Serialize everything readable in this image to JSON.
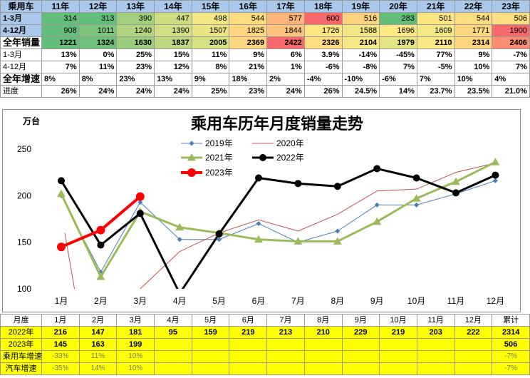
{
  "top_table": {
    "header": [
      "乘用车",
      "11年",
      "12年",
      "13年",
      "14年",
      "15年",
      "16年",
      "17年",
      "18年",
      "19年",
      "20年",
      "21年",
      "22年",
      "23年"
    ],
    "rows": [
      {
        "label": "1-3月",
        "values": [
          "314",
          "313",
          "390",
          "447",
          "498",
          "544",
          "577",
          "600",
          "516",
          "283",
          "501",
          "544",
          "506"
        ],
        "colors": [
          "#63be7b",
          "#63be7b",
          "#a2cf7e",
          "#cfdd81",
          "#f3e783",
          "#fedd81",
          "#fcb479",
          "#f8696b",
          "#fed27f",
          "#63be7b",
          "#fee683",
          "#fedd81",
          "#fedf81"
        ]
      },
      {
        "label": "4-12月",
        "values": [
          "908",
          "1011",
          "1240",
          "1390",
          "1507",
          "1825",
          "1844",
          "1726",
          "1588",
          "1696",
          "1609",
          "1771",
          "1900"
        ],
        "colors": [
          "#63be7b",
          "#7ec57c",
          "#b3d47f",
          "#d4df82",
          "#e9e583",
          "#fed680",
          "#fdc37c",
          "#fee683",
          "#f2e783",
          "#fee983",
          "#f3e983",
          "#fdd680",
          "#f8696b"
        ]
      },
      {
        "label": "全年销量",
        "values": [
          "1221",
          "1324",
          "1630",
          "1837",
          "2005",
          "2369",
          "2422",
          "2326",
          "2104",
          "1979",
          "2110",
          "2314",
          "2406"
        ],
        "colors": [
          "#63be7b",
          "#6dc17c",
          "#9ccd7e",
          "#bdd780",
          "#d7e082",
          "#fed680",
          "#f8696b",
          "#fedc81",
          "#f6e883",
          "#e5e482",
          "#f7e883",
          "#fed680",
          "#fa8c72"
        ]
      }
    ],
    "pct_rows": [
      {
        "label": "1-3月",
        "values": [
          "13%",
          "0%",
          "25%",
          "15%",
          "11%",
          "9%",
          "6%",
          "3.9%",
          "-14%",
          "-45%",
          "77%",
          "9%",
          "-7%"
        ]
      },
      {
        "label": "4-12月",
        "values": [
          "7%",
          "11%",
          "23%",
          "12%",
          "8%",
          "21%",
          "1%",
          "-6%",
          "-8%",
          "7%",
          "-5%",
          "10%",
          "7%"
        ]
      }
    ],
    "growth_label": "全年增速",
    "growth_values": [
      "8%",
      "8%",
      "23%",
      "13%",
      "9%",
      "18%",
      "2%",
      "-4%",
      "-10%",
      "-6%",
      "7%",
      "10%",
      "4%"
    ],
    "progress_label": "进度",
    "progress_values": [
      "26%",
      "24%",
      "24%",
      "24%",
      "25%",
      "23%",
      "24%",
      "26%",
      "24.5%",
      "14%",
      "23.7%",
      "23.5%",
      "21.0%"
    ]
  },
  "chart_data": {
    "type": "line",
    "title": "乘用车历年月度销量走势",
    "ylabel": "万台",
    "categories": [
      "1月",
      "2月",
      "3月",
      "4月",
      "5月",
      "6月",
      "7月",
      "8月",
      "9月",
      "10月",
      "11月",
      "12月"
    ],
    "yticks": [
      100,
      150,
      200,
      250
    ],
    "ylim": [
      100,
      265
    ],
    "series": [
      {
        "name": "2019年",
        "color": "#4a7ebb",
        "marker": "diamond",
        "width": 1,
        "values": [
          200,
          118,
          193,
          153,
          153,
          170,
          150,
          162,
          190,
          190,
          202,
          216
        ]
      },
      {
        "name": "2020年",
        "color": "#c0504d",
        "marker": "none",
        "width": 1,
        "values": [
          160,
          null,
          100,
          140,
          160,
          174,
          162,
          180,
          205,
          207,
          225,
          235
        ]
      },
      {
        "name": "2021年",
        "color": "#9bbb59",
        "marker": "triangle",
        "width": 3,
        "values": [
          202,
          113,
          183,
          166,
          160,
          153,
          151,
          151,
          172,
          197,
          215,
          236
        ]
      },
      {
        "name": "2022年",
        "color": "#000000",
        "marker": "circle",
        "width": 3,
        "values": [
          216,
          147,
          181,
          95,
          159,
          219,
          213,
          210,
          229,
          219,
          203,
          222
        ]
      },
      {
        "name": "2023年",
        "color": "#ff0000",
        "marker": "circle",
        "width": 4,
        "values": [
          145,
          163,
          199,
          null,
          null,
          null,
          null,
          null,
          null,
          null,
          null,
          null
        ]
      }
    ]
  },
  "bottom_table": {
    "header": [
      "月度",
      "1月",
      "2月",
      "3月",
      "4月",
      "5月",
      "6月",
      "7月",
      "8月",
      "9月",
      "10月",
      "11月",
      "12月",
      "累计"
    ],
    "rows": [
      {
        "label": "2022年",
        "values": [
          "216",
          "147",
          "181",
          "95",
          "159",
          "219",
          "213",
          "210",
          "229",
          "219",
          "203",
          "222",
          "2314"
        ]
      },
      {
        "label": "2023年",
        "values": [
          "145",
          "163",
          "199",
          "",
          "",
          "",
          "",
          "",
          "",
          "",
          "",
          "",
          "506"
        ]
      },
      {
        "label": "乘用车增速",
        "values": [
          "-33%",
          "11%",
          "10%",
          "",
          "",
          "",
          "",
          "",
          "",
          "",
          "",
          "",
          "-7%"
        ]
      },
      {
        "label": "汽车增速",
        "values": [
          "-35%",
          "14%",
          "10%",
          "",
          "",
          "",
          "",
          "",
          "",
          "",
          "",
          "",
          "-7%"
        ]
      }
    ]
  }
}
